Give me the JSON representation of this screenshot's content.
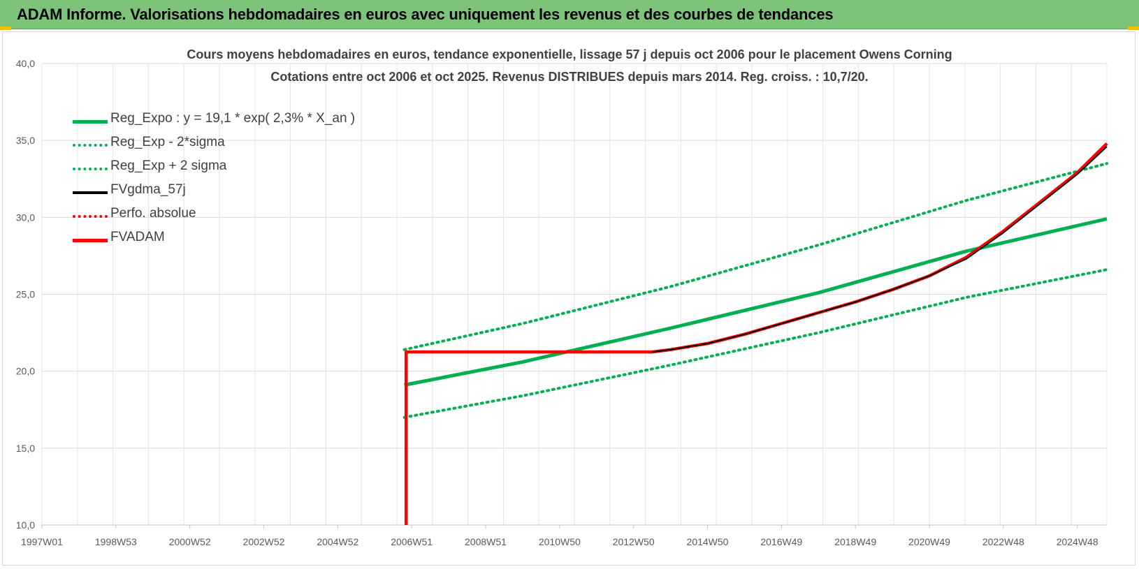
{
  "header": {
    "title": "ADAM Informe. Valorisations hebdomadaires en euros avec uniquement les revenus et des courbes de tendances"
  },
  "chart_data": {
    "type": "line",
    "title": "Cours moyens hebdomadaires en euros, tendance exponentielle, lissage 57 j depuis oct 2006 pour le placement Owens Corning",
    "subtitle": "Cotations entre oct 2006 et oct 2025. Revenus DISTRIBUES depuis mars 2014. Reg. croiss. : 10,7/20.",
    "xlabel": "",
    "ylabel": "",
    "ylim": [
      10,
      40
    ],
    "yticks": [
      "10,0",
      "15,0",
      "20,0",
      "25,0",
      "30,0",
      "35,0",
      "40,0"
    ],
    "xlim": [
      1997.0,
      2025.8
    ],
    "xtick_labels": [
      "1997W01",
      "1998W53",
      "2000W52",
      "2002W52",
      "2004W52",
      "2006W51",
      "2008W51",
      "2010W50",
      "2012W50",
      "2014W50",
      "2016W49",
      "2018W49",
      "2020W49",
      "2022W48",
      "2024W48"
    ],
    "grid": true,
    "legend_position": "top-left",
    "series": [
      {
        "name": "Reg_Expo : y = 19,1 * exp( 2,3% *  X_an )",
        "color": "#00b050",
        "style": "solid",
        "x": [
          2006.8,
          2010.0,
          2014.0,
          2018.0,
          2022.0,
          2025.8
        ],
        "y": [
          19.1,
          20.6,
          22.8,
          25.1,
          27.8,
          29.9
        ]
      },
      {
        "name": "Reg_Exp - 2*sigma",
        "color": "#00b050",
        "style": "dotted",
        "x": [
          2006.8,
          2010.0,
          2014.0,
          2018.0,
          2022.0,
          2025.8
        ],
        "y": [
          17.0,
          18.4,
          20.4,
          22.5,
          24.8,
          26.6
        ]
      },
      {
        "name": "Reg_Exp + 2 sigma",
        "color": "#00b050",
        "style": "dotted",
        "x": [
          2006.8,
          2010.0,
          2014.0,
          2018.0,
          2022.0,
          2025.8
        ],
        "y": [
          21.4,
          23.1,
          25.5,
          28.2,
          31.1,
          33.5
        ]
      },
      {
        "name": "FVgdma_57j",
        "color": "#000000",
        "style": "solid",
        "x": [
          2013.5,
          2014.0,
          2015.0,
          2016.0,
          2017.0,
          2018.0,
          2019.0,
          2020.0,
          2021.0,
          2022.0,
          2023.0,
          2024.0,
          2025.0,
          2025.8
        ],
        "y": [
          21.25,
          21.4,
          21.8,
          22.4,
          23.1,
          23.8,
          24.5,
          25.3,
          26.2,
          27.3,
          29.0,
          30.9,
          32.8,
          34.6
        ]
      },
      {
        "name": "Perfo. absolue",
        "color": "#ff0000",
        "style": "dotted",
        "x": [],
        "y": []
      },
      {
        "name": "FVADAM",
        "color": "#ff0000",
        "style": "solid",
        "x": [
          2006.85,
          2006.85,
          2013.5,
          2014.0,
          2015.0,
          2016.0,
          2017.0,
          2018.0,
          2019.0,
          2020.0,
          2021.0,
          2022.0,
          2023.0,
          2024.0,
          2025.0,
          2025.8
        ],
        "y": [
          10.0,
          21.25,
          21.25,
          21.4,
          21.8,
          22.4,
          23.1,
          23.8,
          24.5,
          25.3,
          26.2,
          27.4,
          29.1,
          31.0,
          32.9,
          34.8
        ]
      }
    ]
  }
}
